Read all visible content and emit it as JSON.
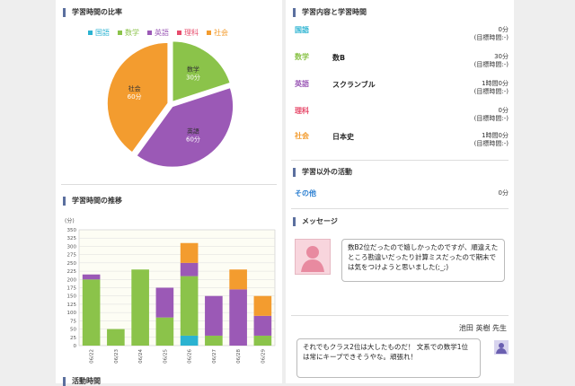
{
  "left": {
    "ratio_title": "学習時間の比率",
    "legend": [
      {
        "label": "国語",
        "color": "#2bb3d1"
      },
      {
        "label": "数学",
        "color": "#8bc34a"
      },
      {
        "label": "英語",
        "color": "#9b59b6"
      },
      {
        "label": "理科",
        "color": "#e74c6c"
      },
      {
        "label": "社会",
        "color": "#f39c2f"
      }
    ],
    "trend_title": "学習時間の推移",
    "unit": "(分)",
    "bottom_partial": "活動時間"
  },
  "chart_data": [
    {
      "type": "pie",
      "slices": [
        {
          "label": "数学",
          "value": 30,
          "value_label": "30分",
          "color": "#8bc34a"
        },
        {
          "label": "英語",
          "value": 60,
          "value_label": "60分",
          "color": "#9b59b6"
        },
        {
          "label": "社会",
          "value": 60,
          "value_label": "60分",
          "color": "#f39c2f"
        }
      ]
    },
    {
      "type": "bar",
      "stacked": true,
      "categories": [
        "06/22",
        "06/23",
        "06/24",
        "06/25",
        "06/26",
        "06/27",
        "06/28",
        "06/29"
      ],
      "ylim": [
        0,
        350
      ],
      "yticks": [
        0,
        25,
        50,
        75,
        100,
        125,
        150,
        175,
        200,
        225,
        250,
        275,
        300,
        325,
        350
      ],
      "series": [
        {
          "name": "国語",
          "color": "#2bb3d1",
          "values": [
            0,
            0,
            0,
            0,
            30,
            0,
            0,
            0
          ]
        },
        {
          "name": "数学",
          "color": "#8bc34a",
          "values": [
            200,
            50,
            230,
            85,
            180,
            30,
            0,
            30
          ]
        },
        {
          "name": "英語",
          "color": "#9b59b6",
          "values": [
            15,
            0,
            0,
            90,
            40,
            120,
            170,
            60
          ]
        },
        {
          "name": "理科",
          "color": "#e74c6c",
          "values": [
            0,
            0,
            0,
            0,
            0,
            0,
            0,
            0
          ]
        },
        {
          "name": "社会",
          "color": "#f39c2f",
          "values": [
            0,
            0,
            0,
            0,
            60,
            0,
            60,
            60
          ]
        }
      ]
    }
  ],
  "right": {
    "content_title": "学習内容と学習時間",
    "subjects": [
      {
        "name": "国語",
        "color": "#2bb3d1",
        "topic": "",
        "time": "0分",
        "goal": "(目標時間:-)"
      },
      {
        "name": "数学",
        "color": "#8bc34a",
        "topic": "数B",
        "time": "30分",
        "goal": "(目標時間:-)"
      },
      {
        "name": "英語",
        "color": "#9b59b6",
        "topic": "スクランブル",
        "time": "1時間0分",
        "goal": "(目標時間:-)"
      },
      {
        "name": "理科",
        "color": "#e74c6c",
        "topic": "",
        "time": "0分",
        "goal": "(目標時間:-)"
      },
      {
        "name": "社会",
        "color": "#f39c2f",
        "topic": "日本史",
        "time": "1時間0分",
        "goal": "(目標時間:-)"
      }
    ],
    "other_title": "学習以外の活動",
    "other": {
      "name": "その他",
      "time": "0分"
    },
    "message_title": "メッセージ",
    "student_message": "数B2位だったので嬉しかったのですが、順違えたところ勘違いだったり計算ミスだったので期末では気をつけようと思いました(;_;)",
    "teacher_name": "池田 英樹 先生",
    "teacher_message": "それでもクラス2位は大したものだ！ 文系での数学1位は常にキープできそうやな。頑張れ！"
  }
}
